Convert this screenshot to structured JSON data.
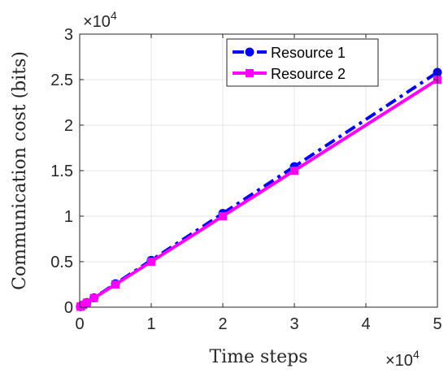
{
  "chart_data": {
    "type": "line",
    "title": "",
    "xlabel": "Time steps",
    "ylabel": "Communication cost (bits)",
    "x_multiplier_label": "×10",
    "x_multiplier_exp": "4",
    "y_multiplier_label": "×10",
    "y_multiplier_exp": "4",
    "xlim": [
      0,
      50000
    ],
    "ylim": [
      0,
      30000
    ],
    "xticks": [
      0,
      10000,
      20000,
      30000,
      40000,
      50000
    ],
    "xtick_labels": [
      "0",
      "1",
      "2",
      "3",
      "4",
      "5"
    ],
    "yticks": [
      0,
      5000,
      10000,
      15000,
      20000,
      25000,
      30000
    ],
    "ytick_labels": [
      "0",
      "0.5",
      "1",
      "1.5",
      "2",
      "2.5",
      "3"
    ],
    "grid": true,
    "legend_position": "top-right",
    "series": [
      {
        "name": "Resource 1",
        "color": "#0000ff",
        "line_style": "dash-dot",
        "marker": "circle",
        "x": [
          100,
          200,
          500,
          1000,
          2000,
          5000,
          10000,
          20000,
          30000,
          50000
        ],
        "y": [
          52,
          103,
          258,
          515,
          1030,
          2575,
          5150,
          10300,
          15450,
          25800
        ]
      },
      {
        "name": "Resource 2",
        "color": "#ff00ff",
        "line_style": "solid",
        "marker": "square",
        "x": [
          100,
          200,
          500,
          1000,
          2000,
          5000,
          10000,
          20000,
          30000,
          50000
        ],
        "y": [
          50,
          100,
          250,
          500,
          1000,
          2500,
          5000,
          10000,
          15000,
          25000
        ]
      }
    ]
  }
}
